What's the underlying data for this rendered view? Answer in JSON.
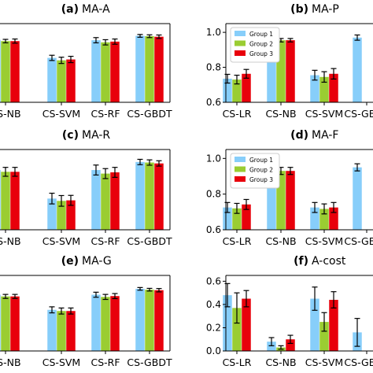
{
  "colors": {
    "group1": "#87cefa",
    "group2": "#9acd32",
    "group3": "#e8000b"
  },
  "chart_data": [
    {
      "type": "bar",
      "panel_letter": "(a)",
      "title": "MA-A",
      "categories": [
        "CS-NB",
        "CS-SVM",
        "CS-RF",
        "CS-GBDT"
      ],
      "ylim": [
        0.6,
        1.05
      ],
      "yticks": [],
      "legend": false,
      "series": [
        {
          "name": "Group 1",
          "values": [
            0.957,
            0.854,
            0.955,
            0.98
          ],
          "err": [
            0.01,
            0.015,
            0.015,
            0.008
          ]
        },
        {
          "name": "Group 2",
          "values": [
            0.95,
            0.84,
            0.943,
            0.978
          ],
          "err": [
            0.01,
            0.018,
            0.015,
            0.008
          ]
        },
        {
          "name": "Group 3",
          "values": [
            0.95,
            0.845,
            0.947,
            0.975
          ],
          "err": [
            0.012,
            0.018,
            0.015,
            0.01
          ]
        }
      ]
    },
    {
      "type": "bar",
      "panel_letter": "(b)",
      "title": "MA-P",
      "categories": [
        "CS-LR",
        "CS-NB",
        "CS-SVM",
        "CS-GBDT"
      ],
      "ylim": [
        0.6,
        1.05
      ],
      "yticks": [
        "0.6",
        "0.8",
        "1.0"
      ],
      "legend": true,
      "series": [
        {
          "name": "Group 1",
          "values": [
            0.735,
            0.955,
            0.755,
            0.97
          ],
          "err": [
            0.025,
            0.01,
            0.028,
            0.015
          ]
        },
        {
          "name": "Group 2",
          "values": [
            0.73,
            0.955,
            0.745,
            null
          ],
          "err": [
            0.025,
            0.01,
            0.03,
            null
          ]
        },
        {
          "name": "Group 3",
          "values": [
            0.763,
            0.955,
            0.763,
            null
          ],
          "err": [
            0.025,
            0.01,
            0.03,
            null
          ]
        }
      ]
    },
    {
      "type": "bar",
      "panel_letter": "(c)",
      "title": "MA-R",
      "categories": [
        "CS-NB",
        "CS-SVM",
        "CS-RF",
        "CS-GBDT"
      ],
      "ylim": [
        0.6,
        1.05
      ],
      "yticks": [],
      "legend": false,
      "series": [
        {
          "name": "Group 1",
          "values": [
            0.935,
            0.775,
            0.935,
            0.98
          ],
          "err": [
            0.025,
            0.03,
            0.028,
            0.015
          ]
        },
        {
          "name": "Group 2",
          "values": [
            0.925,
            0.762,
            0.915,
            0.977
          ],
          "err": [
            0.025,
            0.03,
            0.028,
            0.015
          ]
        },
        {
          "name": "Group 3",
          "values": [
            0.925,
            0.765,
            0.922,
            0.972
          ],
          "err": [
            0.025,
            0.028,
            0.028,
            0.015
          ]
        }
      ]
    },
    {
      "type": "bar",
      "panel_letter": "(d)",
      "title": "MA-F",
      "categories": [
        "CS-LR",
        "CS-NB",
        "CS-SVM",
        "CS-GBDT"
      ],
      "ylim": [
        0.6,
        1.05
      ],
      "yticks": [
        "0.6",
        "0.8",
        "1.0"
      ],
      "legend": true,
      "series": [
        {
          "name": "Group 1",
          "values": [
            0.725,
            0.945,
            0.725,
            0.95
          ],
          "err": [
            0.028,
            0.02,
            0.028,
            0.02
          ]
        },
        {
          "name": "Group 2",
          "values": [
            0.72,
            0.93,
            0.717,
            null
          ],
          "err": [
            0.028,
            0.02,
            0.028,
            null
          ]
        },
        {
          "name": "Group 3",
          "values": [
            0.742,
            0.93,
            0.725,
            null
          ],
          "err": [
            0.028,
            0.02,
            0.028,
            null
          ]
        }
      ]
    },
    {
      "type": "bar",
      "panel_letter": "(e)",
      "title": "MA-G",
      "categories": [
        "CS-NB",
        "CS-SVM",
        "CS-RF",
        "CS-GBDT"
      ],
      "ylim": [
        0.6,
        1.05
      ],
      "yticks": [],
      "legend": false,
      "series": [
        {
          "name": "Group 1",
          "values": [
            0.935,
            0.845,
            0.935,
            0.97
          ],
          "err": [
            0.012,
            0.018,
            0.015,
            0.008
          ]
        },
        {
          "name": "Group 2",
          "values": [
            0.925,
            0.838,
            0.922,
            0.965
          ],
          "err": [
            0.012,
            0.018,
            0.015,
            0.008
          ]
        },
        {
          "name": "Group 3",
          "values": [
            0.925,
            0.838,
            0.927,
            0.962
          ],
          "err": [
            0.012,
            0.018,
            0.015,
            0.01
          ]
        }
      ]
    },
    {
      "type": "bar",
      "panel_letter": "(f)",
      "title": "A-cost",
      "categories": [
        "CS-LR",
        "CS-NB",
        "CS-SVM",
        "CS-GBDT"
      ],
      "ylim": [
        0.0,
        0.65
      ],
      "yticks": [
        "0.0",
        "0.2",
        "0.4",
        "0.6"
      ],
      "legend": false,
      "series": [
        {
          "name": "Group 1",
          "values": [
            0.48,
            0.08,
            0.45,
            0.16
          ],
          "err": [
            0.1,
            0.035,
            0.1,
            0.12
          ]
        },
        {
          "name": "Group 2",
          "values": [
            0.37,
            0.03,
            0.25,
            null
          ],
          "err": [
            0.13,
            0.015,
            0.08,
            null
          ]
        },
        {
          "name": "Group 3",
          "values": [
            0.45,
            0.1,
            0.44,
            null
          ],
          "err": [
            0.07,
            0.035,
            0.07,
            null
          ]
        }
      ]
    }
  ]
}
